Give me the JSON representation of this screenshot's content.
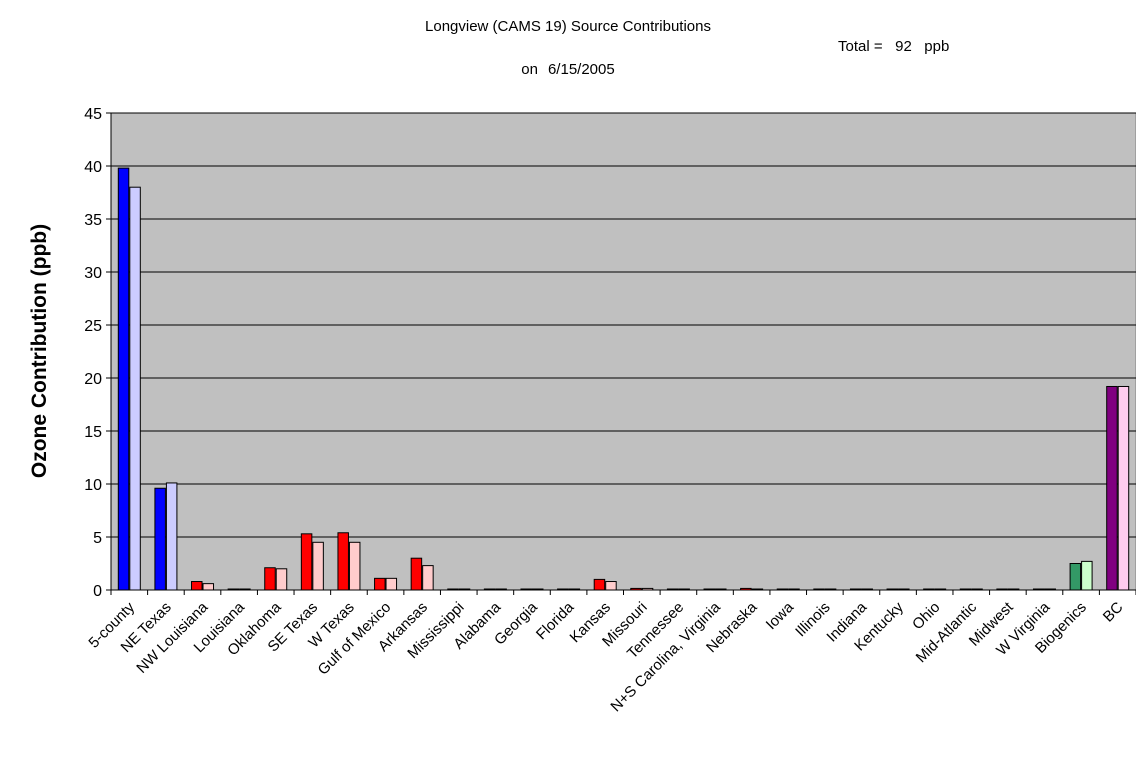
{
  "chart_data": {
    "type": "bar",
    "title": "Longview (CAMS 19) Source Contributions",
    "subtitle_prefix": "on",
    "subtitle_date": "6/15/2005",
    "total_text": "Total =   92   ppb",
    "ylabel": "Ozone Contribution (ppb)",
    "xlabel": "",
    "ylim": [
      0,
      45
    ],
    "yticks": [
      0,
      5,
      10,
      15,
      20,
      25,
      30,
      35,
      40,
      45
    ],
    "grid": true,
    "categories": [
      "5-county",
      "NE Texas",
      "NW Louisiana",
      "Louisiana",
      "Oklahoma",
      "SE Texas",
      "W Texas",
      "Gulf of Mexico",
      "Arkansas",
      "Mississippi",
      "Alabama",
      "Georgia",
      "Florida",
      "Kansas",
      "Missouri",
      "Tennessee",
      "N+S Carolina, Virginia",
      "Nebraska",
      "Iowa",
      "Illinois",
      "Indiana",
      "Kentucky",
      "Ohio",
      "Mid-Atlantic",
      "Midwest",
      "W Virginia",
      "Biogenics",
      "BC"
    ],
    "series": [
      {
        "values": [
          39.8,
          9.6,
          0.8,
          0.05,
          2.1,
          5.3,
          5.4,
          1.1,
          3.0,
          0,
          0,
          0,
          0.05,
          1.0,
          0.15,
          0,
          0,
          0.15,
          0.05,
          0,
          0,
          0,
          0,
          0,
          0.05,
          0,
          2.5,
          19.2
        ],
        "colors": [
          "#0000ff",
          "#0000ff",
          "#ff0000",
          "#ff0000",
          "#ff0000",
          "#ff0000",
          "#ff0000",
          "#ff0000",
          "#ff0000",
          "#ff0000",
          "#ff0000",
          "#ff0000",
          "#ff0000",
          "#ff0000",
          "#ff0000",
          "#ff0000",
          "#ff0000",
          "#ff0000",
          "#ff0000",
          "#ff0000",
          "#ff0000",
          "#ff0000",
          "#ff0000",
          "#ff0000",
          "#ff0000",
          "#ff0000",
          "#339966",
          "#800080"
        ]
      },
      {
        "values": [
          38.0,
          10.1,
          0.6,
          0.05,
          2.0,
          4.5,
          4.5,
          1.1,
          2.3,
          0,
          0,
          0,
          0.05,
          0.8,
          0.15,
          0,
          0,
          0.05,
          0.05,
          0,
          0,
          0,
          0,
          0,
          0.05,
          0,
          2.7,
          19.2
        ],
        "colors": [
          "#ccccff",
          "#ccccff",
          "#ffcccc",
          "#ffcccc",
          "#ffcccc",
          "#ffcccc",
          "#ffcccc",
          "#ffcccc",
          "#ffcccc",
          "#ffcccc",
          "#ffcccc",
          "#ffcccc",
          "#ffcccc",
          "#ffcccc",
          "#ffcccc",
          "#ffcccc",
          "#ffcccc",
          "#ffcccc",
          "#ffcccc",
          "#ffcccc",
          "#ffcccc",
          "#ffcccc",
          "#ffcccc",
          "#ffcccc",
          "#ffcccc",
          "#ffcccc",
          "#ccffcc",
          "#ffccee"
        ]
      }
    ],
    "plot_background": "#c0c0c0"
  }
}
